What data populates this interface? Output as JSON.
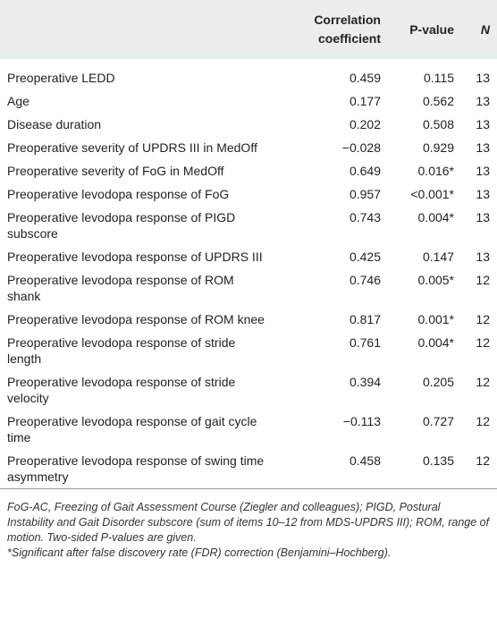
{
  "table": {
    "headers": [
      "",
      "Correlation coefficient",
      "P-value",
      "N"
    ],
    "rows": [
      [
        "Preoperative LEDD",
        "0.459",
        "0.115",
        "13"
      ],
      [
        "Age",
        "0.177",
        "0.562",
        "13"
      ],
      [
        "Disease duration",
        "0.202",
        "0.508",
        "13"
      ],
      [
        "Preoperative severity of UPDRS III in MedOff",
        "−0.028",
        "0.929",
        "13"
      ],
      [
        "Preoperative severity of FoG in MedOff",
        "0.649",
        "0.016*",
        "13"
      ],
      [
        "Preoperative levodopa response of FoG",
        "0.957",
        "<0.001*",
        "13"
      ],
      [
        "Preoperative levodopa response of PIGD subscore",
        "0.743",
        "0.004*",
        "13"
      ],
      [
        "Preoperative levodopa response of UPDRS III",
        "0.425",
        "0.147",
        "13"
      ],
      [
        "Preoperative levodopa response of ROM shank",
        "0.746",
        "0.005*",
        "12"
      ],
      [
        "Preoperative levodopa response of ROM knee",
        "0.817",
        "0.001*",
        "12"
      ],
      [
        "Preoperative levodopa response of stride length",
        "0.761",
        "0.004*",
        "12"
      ],
      [
        "Preoperative levodopa response of stride velocity",
        "0.394",
        "0.205",
        "12"
      ],
      [
        "Preoperative levodopa response of gait cycle time",
        "−0.113",
        "0.727",
        "12"
      ],
      [
        "Preoperative levodopa response of swing time asymmetry",
        "0.458",
        "0.135",
        "12"
      ]
    ]
  },
  "footnotes": [
    "FoG-AC, Freezing of Gait Assessment Course (Ziegler and colleagues); PIGD, Postural Instability and Gait Disorder subscore (sum of items 10–12 from MDS-UPDRS III); ROM, range of motion. Two-sided P-values are given.",
    "*Significant after false discovery rate (FDR) correction (Benjamini–Hochberg)."
  ]
}
